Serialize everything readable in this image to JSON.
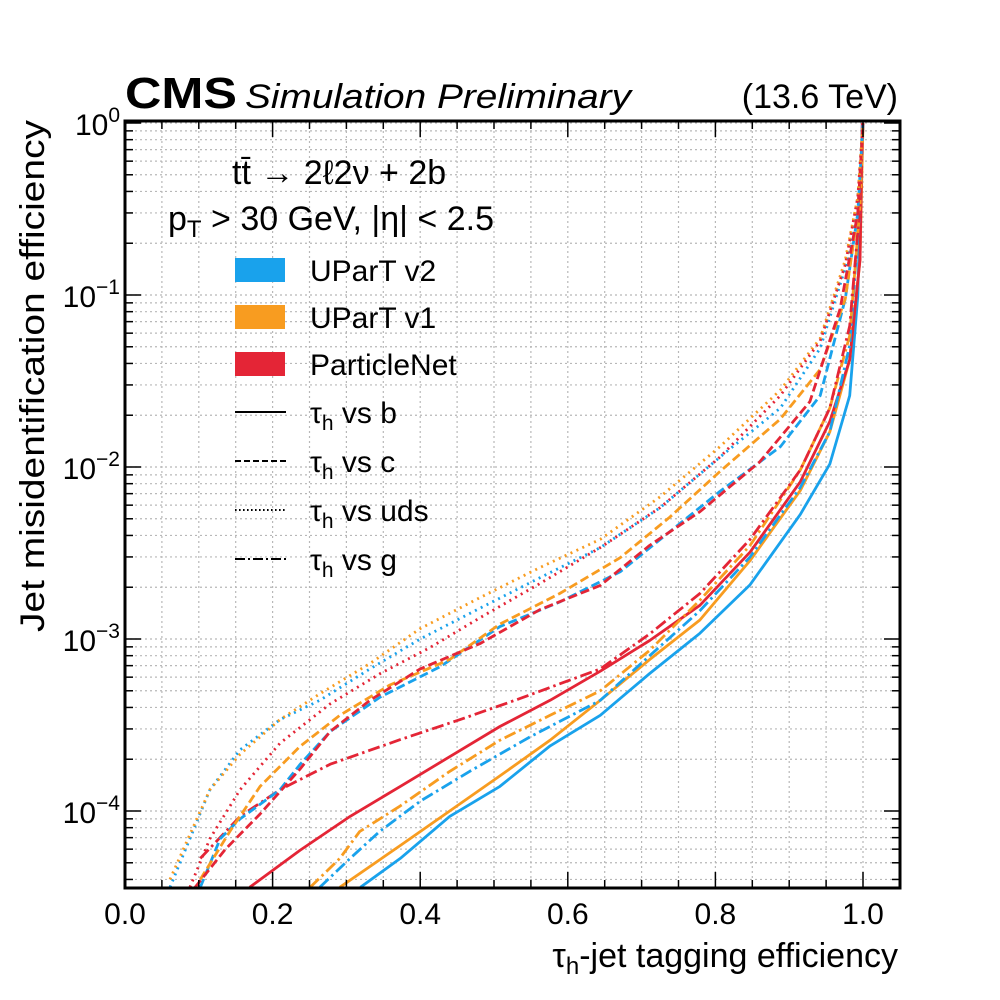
{
  "header": {
    "experiment": "CMS",
    "status": "Simulation Preliminary",
    "energy": "(13.6 TeV)"
  },
  "annotations": {
    "process": "tt̄ → 2ℓ2ν + 2b",
    "cuts_pt": "p",
    "cuts_pt_sub": "T",
    "cuts_rest": " > 30 GeV, |η| < 2.5"
  },
  "legend": {
    "taggers": [
      {
        "label": "UParT v2",
        "color": "#19a2ec"
      },
      {
        "label": "UParT v1",
        "color": "#f89c20"
      },
      {
        "label": "ParticleNet",
        "color": "#e42536"
      }
    ],
    "styles": [
      {
        "label_pre": "τ",
        "label_sub": "h",
        "label_post": " vs b",
        "dash": "solid"
      },
      {
        "label_pre": "τ",
        "label_sub": "h",
        "label_post": " vs c",
        "dash": "dashed"
      },
      {
        "label_pre": "τ",
        "label_sub": "h",
        "label_post": " vs uds",
        "dash": "dotted"
      },
      {
        "label_pre": "τ",
        "label_sub": "h",
        "label_post": " vs g",
        "dash": "dashdot"
      }
    ]
  },
  "chart_data": {
    "type": "line",
    "title": "CMS Simulation Preliminary (13.6 TeV)",
    "xlabel": "τh-jet tagging efficiency",
    "ylabel": "Jet misidentification efficiency",
    "xlim": [
      0.0,
      1.05
    ],
    "ylim": [
      3.6e-05,
      1.0
    ],
    "yscale": "log",
    "grid": true,
    "legend_position": "top-left",
    "x_ticks": [
      "0.0",
      "0.2",
      "0.4",
      "0.6",
      "0.8",
      "1.0"
    ],
    "x_tick_values": [
      0.0,
      0.2,
      0.4,
      0.6,
      0.8,
      1.0
    ],
    "y_ticks": [
      {
        "base": "10",
        "exp": "0",
        "value": 1.0
      },
      {
        "base": "10",
        "exp": "−1",
        "value": 0.1
      },
      {
        "base": "10",
        "exp": "−2",
        "value": 0.01
      },
      {
        "base": "10",
        "exp": "−3",
        "value": 0.001
      },
      {
        "base": "10",
        "exp": "−4",
        "value": 0.0001
      }
    ],
    "series": [
      {
        "name": "UParT v2 τh vs b",
        "tagger": 0,
        "style": "solid",
        "x": [
          0.319,
          0.373,
          0.44,
          0.508,
          0.576,
          0.644,
          0.711,
          0.779,
          0.847,
          0.915,
          0.955,
          0.982,
          0.993,
          0.999
        ],
        "y": [
          3.6e-05,
          5.3e-05,
          9.3e-05,
          0.000139,
          0.000239,
          0.00036,
          0.00063,
          0.00108,
          0.00207,
          0.0053,
          0.0104,
          0.026,
          0.099,
          1.0
        ]
      },
      {
        "name": "UParT v1 τh vs b",
        "tagger": 1,
        "style": "solid",
        "x": [
          0.291,
          0.373,
          0.44,
          0.508,
          0.576,
          0.644,
          0.711,
          0.779,
          0.847,
          0.915,
          0.955,
          0.982,
          0.996,
          1.0
        ],
        "y": [
          3.6e-05,
          6.3e-05,
          0.0001,
          0.00016,
          0.000258,
          0.00044,
          0.00076,
          0.00129,
          0.00286,
          0.0073,
          0.016,
          0.042,
          0.16,
          1.0
        ]
      },
      {
        "name": "ParticleNet τh vs b",
        "tagger": 2,
        "style": "solid",
        "x": [
          0.169,
          0.237,
          0.305,
          0.373,
          0.44,
          0.508,
          0.576,
          0.644,
          0.711,
          0.779,
          0.847,
          0.915,
          0.955,
          0.982,
          0.996,
          0.999
        ],
        "y": [
          3.6e-05,
          5.9e-05,
          9.3e-05,
          0.000139,
          0.000207,
          0.00031,
          0.00044,
          0.00065,
          0.00098,
          0.00157,
          0.0032,
          0.0082,
          0.0184,
          0.042,
          0.16,
          1.0
        ]
      },
      {
        "name": "UParT v2 τh vs g",
        "tagger": 0,
        "style": "dashdot",
        "x": [
          0.264,
          0.305,
          0.345,
          0.4,
          0.467,
          0.549,
          0.644,
          0.711,
          0.779,
          0.847,
          0.915,
          0.955,
          0.982,
          0.996,
          1.0
        ],
        "y": [
          3.6e-05,
          5.3e-05,
          7.6e-05,
          0.000114,
          0.00017,
          0.00027,
          0.00044,
          0.0008,
          0.00146,
          0.003,
          0.0076,
          0.016,
          0.051,
          0.33,
          1.0
        ]
      },
      {
        "name": "UParT v1 τh vs g",
        "tagger": 1,
        "style": "dashdot",
        "x": [
          0.251,
          0.291,
          0.318,
          0.373,
          0.44,
          0.508,
          0.576,
          0.644,
          0.711,
          0.779,
          0.847,
          0.915,
          0.955,
          0.982,
          0.996,
          1.0
        ],
        "y": [
          3.6e-05,
          5.3e-05,
          7.6e-05,
          0.000107,
          0.00017,
          0.000258,
          0.00036,
          0.0005,
          0.00086,
          0.00168,
          0.0035,
          0.0096,
          0.022,
          0.058,
          0.33,
          1.0
        ]
      },
      {
        "name": "ParticleNet τh vs g",
        "tagger": 2,
        "style": "dashdot",
        "x": [
          0.102,
          0.156,
          0.21,
          0.278,
          0.373,
          0.454,
          0.535,
          0.644,
          0.711,
          0.779,
          0.847,
          0.915,
          0.955,
          0.982,
          0.996,
          1.0
        ],
        "y": [
          5.3e-05,
          9.3e-05,
          0.000133,
          0.000187,
          0.00026,
          0.00034,
          0.00045,
          0.00067,
          0.00107,
          0.00184,
          0.0038,
          0.0096,
          0.022,
          0.066,
          0.33,
          1.0
        ]
      },
      {
        "name": "UParT v2 τh vs c",
        "tagger": 0,
        "style": "dashed",
        "x": [
          0.102,
          0.129,
          0.156,
          0.21,
          0.237,
          0.278,
          0.346,
          0.427,
          0.508,
          0.589,
          0.671,
          0.738,
          0.806,
          0.888,
          0.942,
          0.976,
          0.993,
          1.0
        ],
        "y": [
          3.6e-05,
          6.9e-05,
          9e-05,
          0.000133,
          0.000186,
          0.00029,
          0.00046,
          0.00069,
          0.00118,
          0.00164,
          0.00246,
          0.0042,
          0.0072,
          0.0131,
          0.026,
          0.095,
          0.3,
          1.0
        ]
      },
      {
        "name": "UParT v1 τh vs c",
        "tagger": 1,
        "style": "dashed",
        "x": [
          0.102,
          0.142,
          0.183,
          0.237,
          0.291,
          0.359,
          0.44,
          0.508,
          0.589,
          0.671,
          0.738,
          0.806,
          0.888,
          0.942,
          0.976,
          0.993,
          1.0
        ],
        "y": [
          4e-05,
          7.6e-05,
          0.000139,
          0.000237,
          0.00036,
          0.00054,
          0.00076,
          0.00122,
          0.00184,
          0.00297,
          0.0051,
          0.0094,
          0.019,
          0.037,
          0.095,
          0.3,
          1.0
        ]
      },
      {
        "name": "ParticleNet τh vs c",
        "tagger": 2,
        "style": "dashed",
        "x": [
          0.095,
          0.136,
          0.183,
          0.237,
          0.278,
          0.332,
          0.4,
          0.481,
          0.562,
          0.644,
          0.711,
          0.779,
          0.86,
          0.928,
          0.969,
          0.993,
          1.0
        ],
        "y": [
          3.6e-05,
          6e-05,
          9.6e-05,
          0.000175,
          0.00029,
          0.00044,
          0.00067,
          0.00094,
          0.00148,
          0.00205,
          0.0035,
          0.0055,
          0.0107,
          0.024,
          0.083,
          0.3,
          1.0
        ]
      },
      {
        "name": "UParT v2 τh vs uds",
        "tagger": 0,
        "style": "dotted",
        "x": [
          0.061,
          0.088,
          0.115,
          0.156,
          0.21,
          0.264,
          0.332,
          0.4,
          0.481,
          0.562,
          0.644,
          0.725,
          0.806,
          0.888,
          0.942,
          0.976,
          0.993,
          1.0
        ],
        "y": [
          3.6e-05,
          6.9e-05,
          0.000133,
          0.000227,
          0.00034,
          0.00044,
          0.00067,
          0.001,
          0.00151,
          0.00227,
          0.0034,
          0.0058,
          0.0114,
          0.022,
          0.049,
          0.144,
          0.37,
          1.0
        ]
      },
      {
        "name": "UParT v1 τh vs uds",
        "tagger": 1,
        "style": "dotted",
        "x": [
          0.061,
          0.088,
          0.115,
          0.156,
          0.21,
          0.264,
          0.332,
          0.4,
          0.481,
          0.562,
          0.644,
          0.725,
          0.806,
          0.888,
          0.942,
          0.976,
          0.993,
          1.0
        ],
        "y": [
          4e-05,
          7.3e-05,
          0.000133,
          0.000214,
          0.00034,
          0.00048,
          0.00072,
          0.00115,
          0.00174,
          0.0026,
          0.0038,
          0.0067,
          0.0131,
          0.028,
          0.056,
          0.16,
          0.37,
          1.0
        ]
      },
      {
        "name": "ParticleNet τh vs uds",
        "tagger": 2,
        "style": "dotted",
        "x": [
          0.088,
          0.115,
          0.156,
          0.21,
          0.278,
          0.346,
          0.413,
          0.481,
          0.562,
          0.644,
          0.725,
          0.806,
          0.888,
          0.942,
          0.976,
          0.993,
          1.0
        ],
        "y": [
          3.6e-05,
          6.9e-05,
          0.000133,
          0.000248,
          0.00042,
          0.00063,
          0.00089,
          0.00133,
          0.0021,
          0.0034,
          0.0058,
          0.0114,
          0.026,
          0.054,
          0.15,
          0.37,
          1.0
        ]
      }
    ]
  }
}
